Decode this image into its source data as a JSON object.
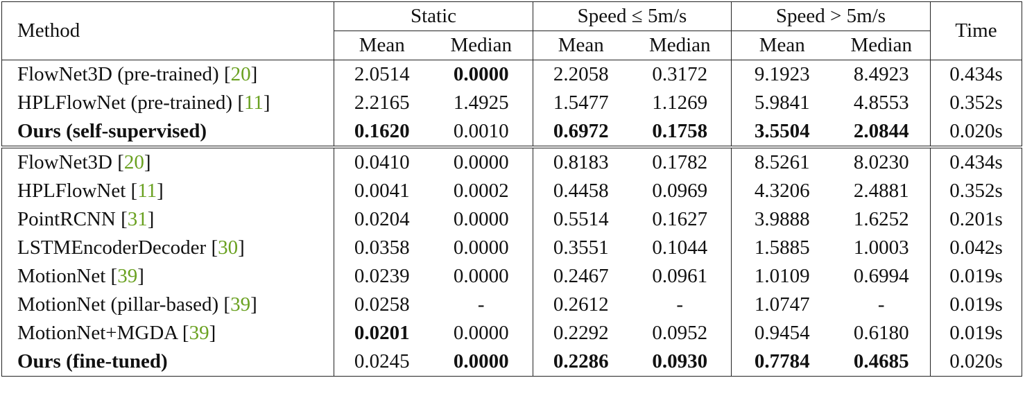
{
  "table": {
    "header": {
      "method": "Method",
      "time": "Time",
      "groups": [
        "Static",
        "Speed ≤ 5m/s",
        "Speed > 5m/s"
      ],
      "sub": [
        "Mean",
        "Median",
        "Mean",
        "Median",
        "Mean",
        "Median"
      ]
    },
    "sections": [
      {
        "rows": [
          {
            "method": "FlowNet3D (pre-trained)",
            "cite": "20",
            "cells": [
              "2.0514",
              "0.0000",
              "2.2058",
              "0.3172",
              "9.1923",
              "8.4923",
              "0.434s"
            ],
            "bold": [
              1
            ]
          },
          {
            "method": "HPLFlowNet (pre-trained)",
            "cite": "11",
            "cells": [
              "2.2165",
              "1.4925",
              "1.5477",
              "1.1269",
              "5.9841",
              "4.8553",
              "0.352s"
            ],
            "bold": []
          },
          {
            "method": "Ours (self-supervised)",
            "cells": [
              "0.1620",
              "0.0010",
              "0.6972",
              "0.1758",
              "3.5504",
              "2.0844",
              "0.020s"
            ],
            "bold": [
              "method",
              0,
              2,
              3,
              4,
              5
            ]
          }
        ]
      },
      {
        "rows": [
          {
            "method": "FlowNet3D",
            "cite": "20",
            "cells": [
              "0.0410",
              "0.0000",
              "0.8183",
              "0.1782",
              "8.5261",
              "8.0230",
              "0.434s"
            ],
            "bold": []
          },
          {
            "method": "HPLFlowNet",
            "cite": "11",
            "cells": [
              "0.0041",
              "0.0002",
              "0.4458",
              "0.0969",
              "4.3206",
              "2.4881",
              "0.352s"
            ],
            "bold": []
          },
          {
            "method": "PointRCNN",
            "cite": "31",
            "cells": [
              "0.0204",
              "0.0000",
              "0.5514",
              "0.1627",
              "3.9888",
              "1.6252",
              "0.201s"
            ],
            "bold": []
          },
          {
            "method": "LSTMEncoderDecoder",
            "cite": "30",
            "cells": [
              "0.0358",
              "0.0000",
              "0.3551",
              "0.1044",
              "1.5885",
              "1.0003",
              "0.042s"
            ],
            "bold": []
          },
          {
            "method": "MotionNet",
            "cite": "39",
            "cells": [
              "0.0239",
              "0.0000",
              "0.2467",
              "0.0961",
              "1.0109",
              "0.6994",
              "0.019s"
            ],
            "bold": []
          },
          {
            "method": "MotionNet (pillar-based)",
            "cite": "39",
            "cells": [
              "0.0258",
              "-",
              "0.2612",
              "-",
              "1.0747",
              "-",
              "0.019s"
            ],
            "bold": []
          },
          {
            "method": "MotionNet+MGDA",
            "cite": "39",
            "cells": [
              "0.0201",
              "0.0000",
              "0.2292",
              "0.0952",
              "0.9454",
              "0.6180",
              "0.019s"
            ],
            "bold": [
              0
            ]
          },
          {
            "method": "Ours (fine-tuned)",
            "cells": [
              "0.0245",
              "0.0000",
              "0.2286",
              "0.0930",
              "0.7784",
              "0.4685",
              "0.020s"
            ],
            "bold": [
              "method",
              1,
              2,
              3,
              4,
              5
            ]
          }
        ]
      }
    ]
  }
}
